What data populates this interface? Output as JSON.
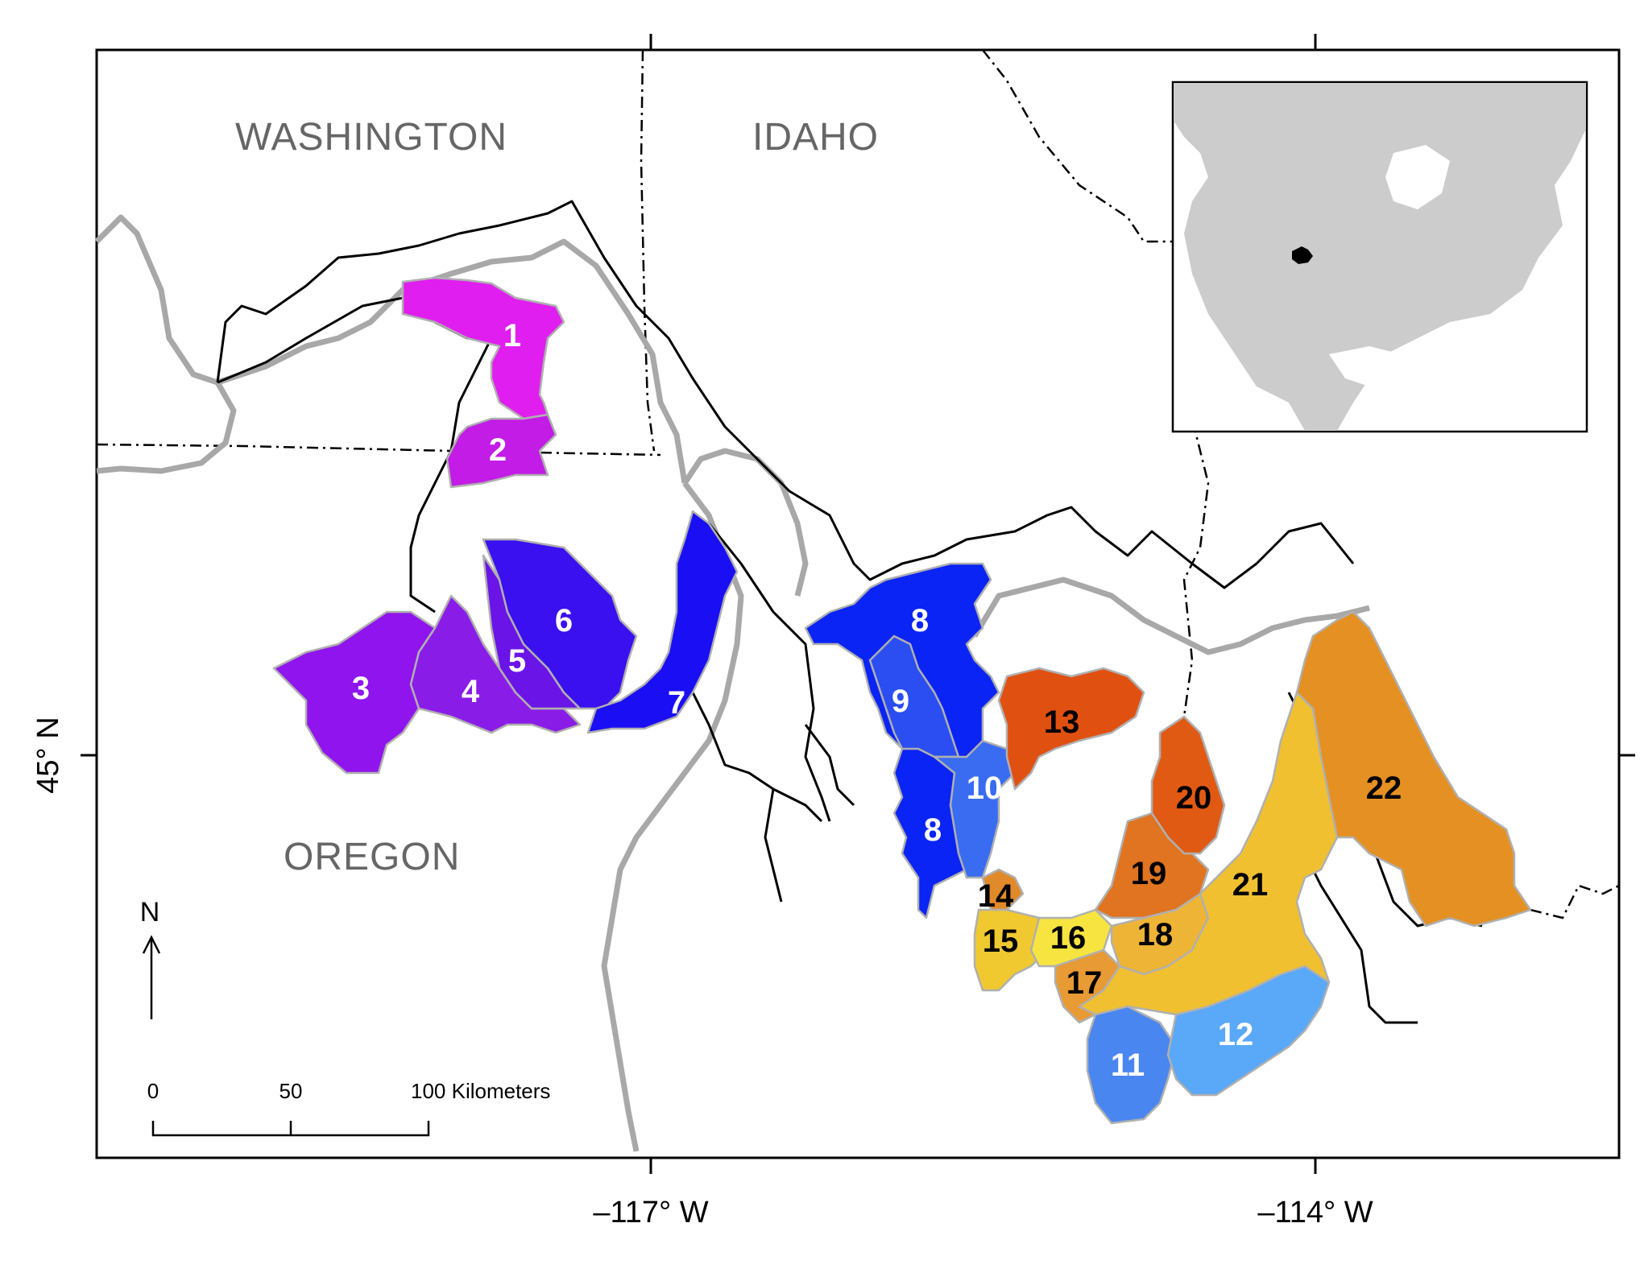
{
  "states": {
    "washington": "WASHINGTON",
    "idaho": "IDAHO",
    "oregon": "OREGON"
  },
  "axes": {
    "x_ticks": [
      "–117° W",
      "–114° W"
    ],
    "y_ticks": [
      "45° N"
    ]
  },
  "north_arrow": {
    "label": "N"
  },
  "scale_bar": {
    "ticks": [
      "0",
      "50",
      "100 Kilometers"
    ]
  },
  "inset": {
    "highlight_color": "#000000",
    "land_color": "#cccccc"
  },
  "basins": [
    {
      "id": "1",
      "color": "#e01ef0",
      "text_color": "#ffffff"
    },
    {
      "id": "2",
      "color": "#c21ce6",
      "text_color": "#ffffff"
    },
    {
      "id": "3",
      "color": "#8f14ee",
      "text_color": "#ffffff"
    },
    {
      "id": "4",
      "color": "#8a1ce8",
      "text_color": "#ffffff"
    },
    {
      "id": "5",
      "color": "#6a14e8",
      "text_color": "#ffffff"
    },
    {
      "id": "6",
      "color": "#3a0ff0",
      "text_color": "#ffffff"
    },
    {
      "id": "7",
      "color": "#1a0ef5",
      "text_color": "#ffffff"
    },
    {
      "id": "8",
      "color": "#0a24f5",
      "text_color": "#ffffff"
    },
    {
      "id": "9",
      "color": "#2a4ef2",
      "text_color": "#ffffff"
    },
    {
      "id": "10",
      "color": "#3a6cf2",
      "text_color": "#ffffff"
    },
    {
      "id": "11",
      "color": "#4a86f0",
      "text_color": "#ffffff"
    },
    {
      "id": "12",
      "color": "#5aa8f8",
      "text_color": "#ffffff"
    },
    {
      "id": "13",
      "color": "#e05010",
      "text_color": "#000000"
    },
    {
      "id": "14",
      "color": "#e08a2a",
      "text_color": "#000000"
    },
    {
      "id": "15",
      "color": "#f0c830",
      "text_color": "#000000"
    },
    {
      "id": "16",
      "color": "#f8e440",
      "text_color": "#000000"
    },
    {
      "id": "17",
      "color": "#e89a34",
      "text_color": "#000000"
    },
    {
      "id": "18",
      "color": "#eeb436",
      "text_color": "#000000"
    },
    {
      "id": "19",
      "color": "#e07420",
      "text_color": "#000000"
    },
    {
      "id": "20",
      "color": "#e05a14",
      "text_color": "#000000"
    },
    {
      "id": "21",
      "color": "#f0c030",
      "text_color": "#000000"
    },
    {
      "id": "22",
      "color": "#e59022",
      "text_color": "#000000"
    }
  ]
}
